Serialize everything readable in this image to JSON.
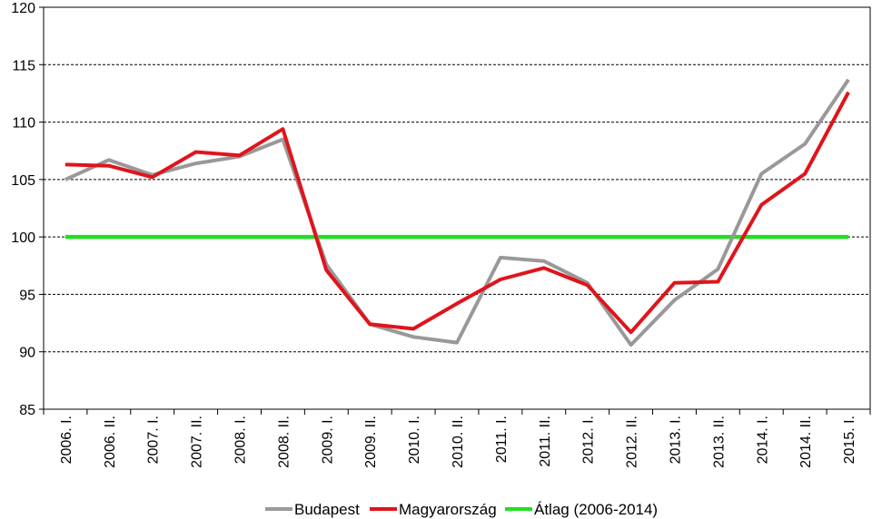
{
  "chart_data": {
    "type": "line",
    "categories": [
      "2006. I.",
      "2006. II.",
      "2007. I.",
      "2007. II.",
      "2008. I.",
      "2008. II.",
      "2009. I.",
      "2009. II.",
      "2010. I.",
      "2010. II.",
      "2011. I.",
      "2011. II.",
      "2012. I.",
      "2012. II.",
      "2013. I.",
      "2013. II.",
      "2014. I.",
      "2014. II.",
      "2015. I."
    ],
    "series": [
      {
        "name": "Budapest",
        "color": "#999999",
        "values": [
          105.0,
          106.7,
          105.4,
          106.4,
          107.0,
          108.5,
          97.6,
          92.4,
          91.3,
          90.8,
          98.2,
          97.9,
          96.0,
          90.6,
          94.5,
          97.2,
          105.5,
          108.1,
          113.7
        ]
      },
      {
        "name": "Magyarország",
        "color": "#e0141b",
        "values": [
          106.3,
          106.2,
          105.2,
          107.4,
          107.1,
          109.4,
          97.1,
          92.4,
          92.0,
          94.2,
          96.3,
          97.3,
          95.8,
          91.7,
          96.0,
          96.1,
          102.8,
          105.5,
          112.6
        ]
      },
      {
        "name": "Átlag (2006-2014)",
        "color": "#21e021",
        "values": [
          100,
          100,
          100,
          100,
          100,
          100,
          100,
          100,
          100,
          100,
          100,
          100,
          100,
          100,
          100,
          100,
          100,
          100,
          100
        ]
      }
    ],
    "yticks": [
      85,
      90,
      95,
      100,
      105,
      110,
      115,
      120
    ],
    "ylim": [
      85,
      120
    ],
    "grid": "dashed horizontal",
    "legend": "bottom"
  }
}
